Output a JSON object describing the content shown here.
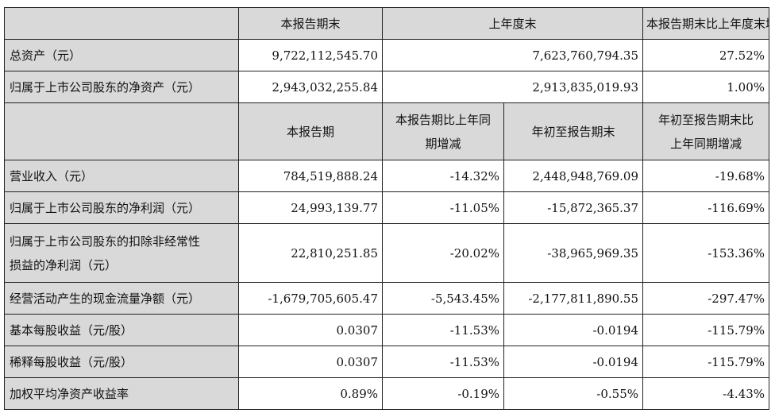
{
  "balance": {
    "headers": [
      "本报告期末",
      "上年度末",
      "本报告期末比上年度末增减"
    ],
    "rows": [
      {
        "label": "总资产（元）",
        "values": [
          "9,722,112,545.70",
          "7,623,760,794.35",
          "27.52%"
        ]
      },
      {
        "label": "归属于上市公司股东的净资产（元）",
        "values": [
          "2,943,032,255.84",
          "2,913,835,019.93",
          "1.00%"
        ]
      }
    ]
  },
  "income": {
    "headers": [
      {
        "line1": "本报告期",
        "line2": ""
      },
      {
        "line1": "本报告期比上年同",
        "line2": "期增减"
      },
      {
        "line1": "年初至报告期末",
        "line2": ""
      },
      {
        "line1": "年初至报告期末比",
        "line2": "上年同期增减"
      }
    ],
    "rows": [
      {
        "label": "营业收入（元）",
        "label2": "",
        "values": [
          "784,519,888.24",
          "-14.32%",
          "2,448,948,769.09",
          "-19.68%"
        ]
      },
      {
        "label": "归属于上市公司股东的净利润（元）",
        "label2": "",
        "values": [
          "24,993,139.77",
          "-11.05%",
          "-15,872,365.37",
          "-116.69%"
        ]
      },
      {
        "label": "归属于上市公司股东的扣除非经常性",
        "label2": "损益的净利润（元）",
        "values": [
          "22,810,251.85",
          "-20.02%",
          "-38,965,969.35",
          "-153.36%"
        ]
      },
      {
        "label": "经营活动产生的现金流量净额（元）",
        "label2": "",
        "values": [
          "-1,679,705,605.47",
          "-5,543.45%",
          "-2,177,811,890.55",
          "-297.47%"
        ]
      },
      {
        "label": "基本每股收益（元/股）",
        "label2": "",
        "values": [
          "0.0307",
          "-11.53%",
          "-0.0194",
          "-115.79%"
        ]
      },
      {
        "label": "稀释每股收益（元/股）",
        "label2": "",
        "values": [
          "0.0307",
          "-11.53%",
          "-0.0194",
          "-115.79%"
        ]
      },
      {
        "label": "加权平均净资产收益率",
        "label2": "",
        "values": [
          "0.89%",
          "-0.19%",
          "-0.55%",
          "-4.43%"
        ]
      }
    ]
  }
}
